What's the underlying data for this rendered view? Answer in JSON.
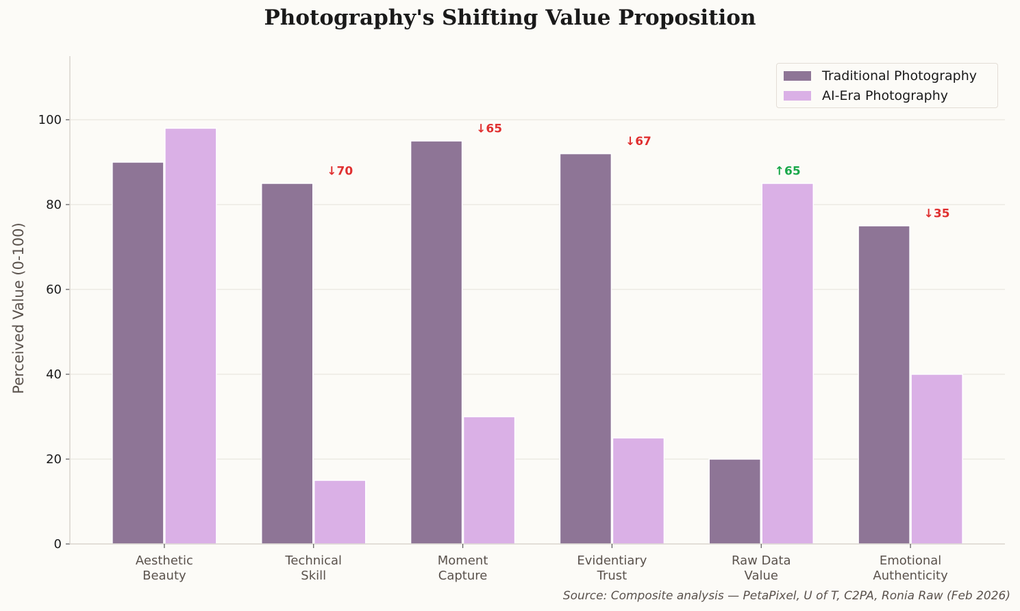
{
  "chart_data": {
    "type": "bar",
    "title": "Photography's Shifting Value Proposition",
    "xlabel": "",
    "ylabel": "Perceived Value (0-100)",
    "ylim": [
      0,
      115
    ],
    "yticks": [
      0,
      20,
      40,
      60,
      80,
      100
    ],
    "grid": true,
    "legend_position": "top-right",
    "categories": [
      "Aesthetic\nBeauty",
      "Technical\nSkill",
      "Moment\nCapture",
      "Evidentiary\nTrust",
      "Raw Data\nValue",
      "Emotional\nAuthenticity"
    ],
    "series": [
      {
        "name": "Traditional Photography",
        "color": "#8e7596",
        "values": [
          90,
          85,
          95,
          92,
          20,
          75
        ]
      },
      {
        "name": "AI-Era Photography",
        "color": "#dab0e6",
        "values": [
          98,
          15,
          30,
          25,
          85,
          40
        ]
      }
    ],
    "annotations": [
      {
        "category": "Technical\nSkill",
        "text": "↓70",
        "color": "#e03030"
      },
      {
        "category": "Moment\nCapture",
        "text": "↓65",
        "color": "#e03030"
      },
      {
        "category": "Evidentiary\nTrust",
        "text": "↓67",
        "color": "#e03030"
      },
      {
        "category": "Raw Data\nValue",
        "text": "↑65",
        "color": "#1aa84a"
      },
      {
        "category": "Emotional\nAuthenticity",
        "text": "↓35",
        "color": "#e03030"
      }
    ],
    "source": "Source: Composite analysis — PetaPixel, U of T, C2PA, Ronia Raw (Feb 2026)"
  }
}
